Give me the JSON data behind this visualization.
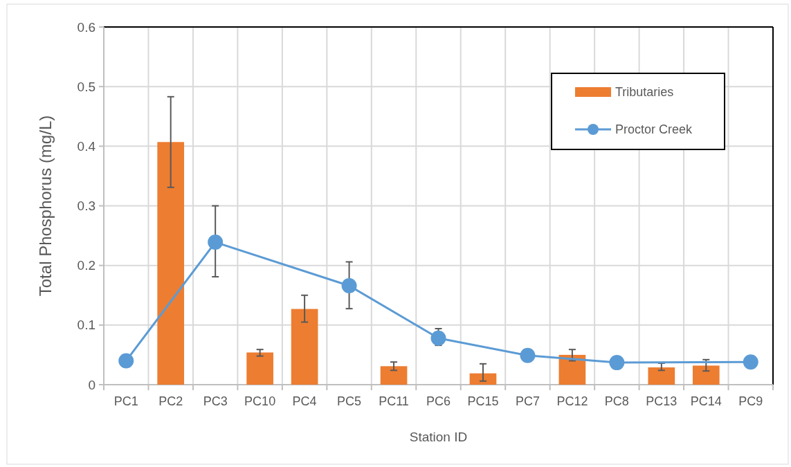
{
  "chart_data": {
    "type": "bar",
    "xlabel": "Station ID",
    "ylabel": "Total Phosphorus (mg/L)",
    "categories": [
      "PC1",
      "PC2",
      "PC3",
      "PC10",
      "PC4",
      "PC5",
      "PC11",
      "PC6",
      "PC15",
      "PC7",
      "PC12",
      "PC8",
      "PC13",
      "PC14",
      "PC9"
    ],
    "series": [
      {
        "name": "Tributaries",
        "color": "#ed7d31",
        "values": [
          null,
          0.407,
          null,
          0.054,
          0.127,
          null,
          0.031,
          null,
          0.019,
          null,
          0.05,
          null,
          0.029,
          0.032,
          null
        ],
        "errors": [
          null,
          [
            0.331,
            0.483
          ],
          null,
          [
            0.048,
            0.059
          ],
          [
            0.105,
            0.15
          ],
          null,
          [
            0.024,
            0.038
          ],
          null,
          [
            0.006,
            0.035
          ],
          null,
          [
            0.04,
            0.059
          ],
          null,
          [
            0.024,
            0.036
          ],
          [
            0.023,
            0.042
          ],
          null
        ]
      },
      {
        "name": "Proctor Creek",
        "type": "line",
        "color": "#5b9bd5",
        "marker": "circle",
        "values": [
          0.04,
          null,
          0.239,
          null,
          null,
          0.166,
          null,
          0.078,
          null,
          0.049,
          null,
          0.037,
          null,
          null,
          0.038
        ],
        "errors": [
          null,
          null,
          [
            0.181,
            0.3
          ],
          null,
          null,
          [
            0.1275,
            0.206
          ],
          null,
          [
            0.066,
            0.094
          ],
          null,
          null,
          null,
          null,
          null,
          null,
          null
        ]
      }
    ],
    "ylim": [
      0,
      0.6
    ],
    "yticks": [
      0,
      0.1,
      0.2,
      0.3,
      0.4,
      0.5,
      0.6
    ],
    "grid": true,
    "legend": "top right"
  }
}
